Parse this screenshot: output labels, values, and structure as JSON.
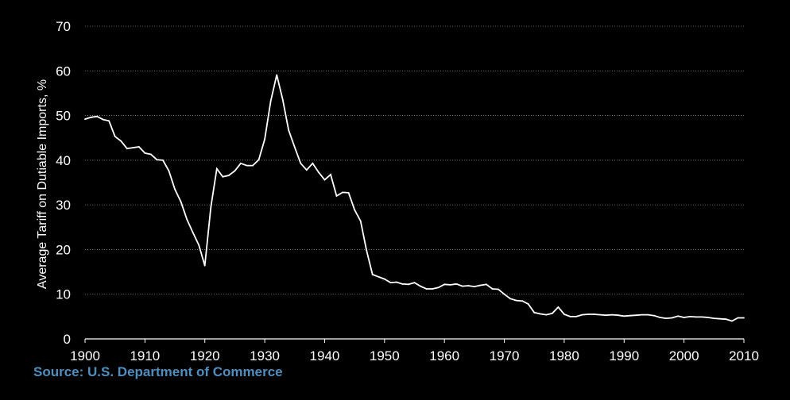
{
  "source_text": "Source: U.S. Department of Commerce",
  "colors": {
    "background": "#000000",
    "line": "#ffffff",
    "grid": "#ffffff",
    "source": "#4f8fbf",
    "text": "#ffffff"
  },
  "chart_data": {
    "type": "line",
    "title": "",
    "xlabel": "",
    "ylabel": "Average Tariff on Dutiable Imports, %",
    "xlim": [
      1900,
      2010
    ],
    "ylim": [
      0,
      70
    ],
    "xticks": [
      1900,
      1910,
      1920,
      1930,
      1940,
      1950,
      1960,
      1970,
      1980,
      1990,
      2000,
      2010
    ],
    "yticks": [
      0,
      10,
      20,
      30,
      40,
      50,
      60,
      70
    ],
    "grid": "horizontal dotted",
    "legend": "none",
    "series": [
      {
        "x": [
          1900,
          1901,
          1902,
          1903,
          1904,
          1905,
          1906,
          1907,
          1908,
          1909,
          1910,
          1911,
          1912,
          1913,
          1914,
          1915,
          1916,
          1917,
          1918,
          1919,
          1920,
          1921,
          1922,
          1923,
          1924,
          1925,
          1926,
          1927,
          1928,
          1929,
          1930,
          1931,
          1932,
          1933,
          1934,
          1935,
          1936,
          1937,
          1938,
          1939,
          1940,
          1941,
          1942,
          1943,
          1944,
          1945,
          1946,
          1947,
          1948,
          1949,
          1950,
          1951,
          1952,
          1953,
          1954,
          1955,
          1956,
          1957,
          1958,
          1959,
          1960,
          1961,
          1962,
          1963,
          1964,
          1965,
          1966,
          1967,
          1968,
          1969,
          1970,
          1971,
          1972,
          1973,
          1974,
          1975,
          1976,
          1977,
          1978,
          1979,
          1980,
          1981,
          1982,
          1983,
          1984,
          1985,
          1986,
          1987,
          1988,
          1989,
          1990,
          1991,
          1992,
          1993,
          1994,
          1995,
          1996,
          1997,
          1998,
          1999,
          2000,
          2001,
          2002,
          2003,
          2004,
          2005,
          2006,
          2007,
          2008,
          2009,
          2010
        ],
        "y": [
          49.2,
          49.6,
          49.8,
          49.1,
          48.8,
          45.3,
          44.3,
          42.6,
          42.8,
          43.0,
          41.6,
          41.3,
          40.1,
          40.0,
          37.6,
          33.5,
          30.7,
          26.8,
          23.8,
          21.0,
          16.4,
          29.5,
          38.1,
          36.3,
          36.6,
          37.6,
          39.3,
          38.8,
          38.8,
          40.1,
          44.7,
          53.2,
          59.1,
          53.6,
          46.7,
          42.9,
          39.3,
          37.8,
          39.3,
          37.3,
          35.6,
          36.8,
          32.0,
          32.8,
          32.7,
          28.9,
          26.4,
          19.8,
          14.4,
          13.9,
          13.4,
          12.6,
          12.7,
          12.3,
          12.2,
          12.6,
          11.8,
          11.2,
          11.2,
          11.5,
          12.2,
          12.1,
          12.3,
          11.8,
          11.9,
          11.7,
          12.0,
          12.2,
          11.2,
          11.1,
          10.0,
          9.0,
          8.6,
          8.5,
          7.8,
          5.9,
          5.6,
          5.4,
          5.7,
          7.1,
          5.5,
          5.0,
          5.0,
          5.4,
          5.5,
          5.5,
          5.4,
          5.3,
          5.4,
          5.3,
          5.1,
          5.2,
          5.3,
          5.4,
          5.4,
          5.2,
          4.8,
          4.6,
          4.7,
          5.1,
          4.8,
          5.0,
          4.9,
          4.9,
          4.8,
          4.6,
          4.5,
          4.4,
          4.0,
          4.7,
          4.7
        ]
      }
    ]
  }
}
